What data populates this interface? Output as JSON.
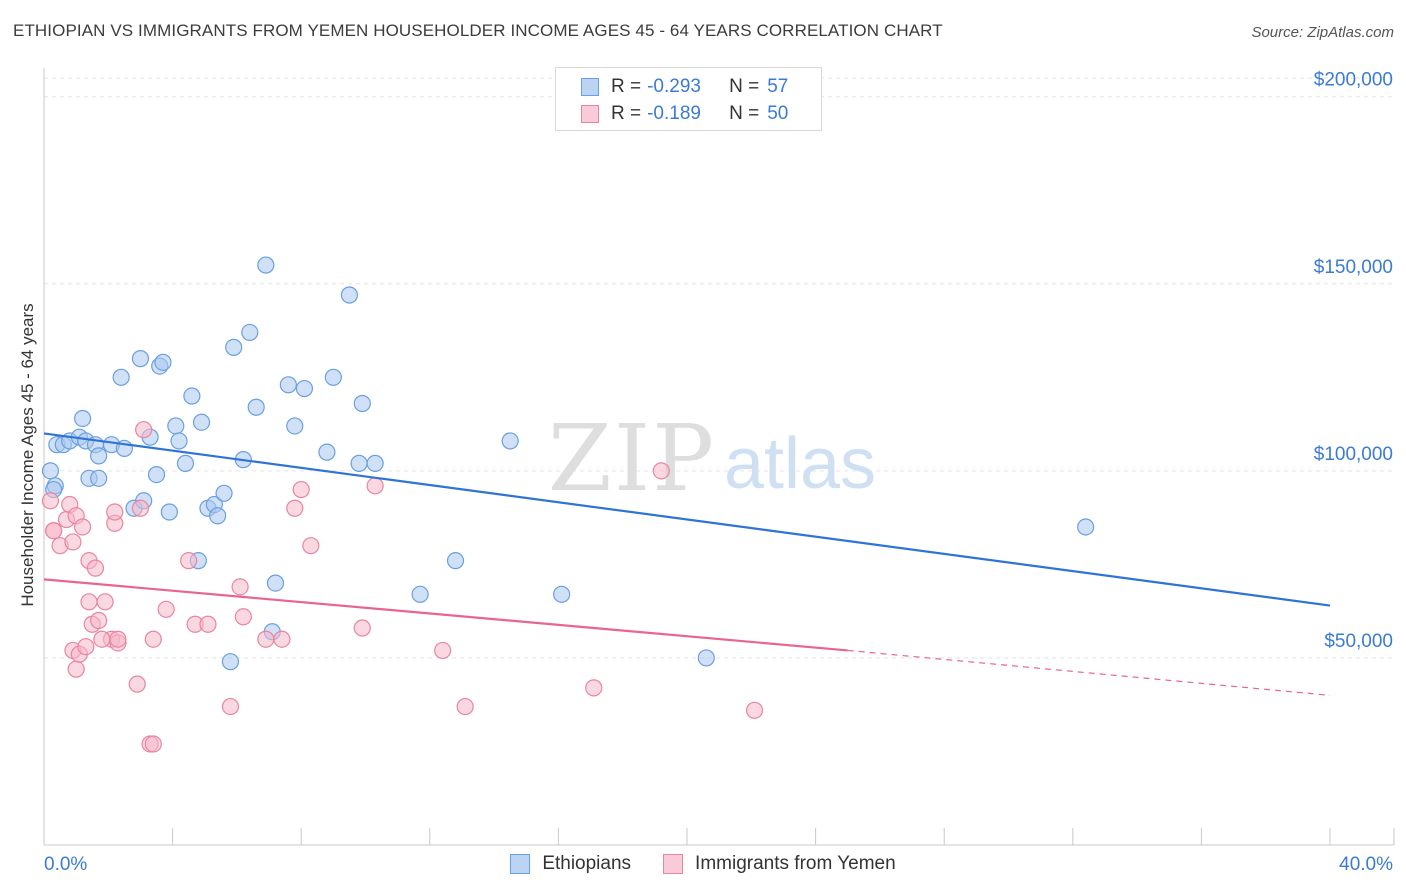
{
  "header": {
    "title": "ETHIOPIAN VS IMMIGRANTS FROM YEMEN HOUSEHOLDER INCOME AGES 45 - 64 YEARS CORRELATION CHART",
    "source": "Source: ZipAtlas.com"
  },
  "watermark": {
    "zip": "ZIP",
    "atlas": "atlas"
  },
  "legend": {
    "rows": [
      {
        "r_label": "R =",
        "r_value": "-0.293",
        "n_label": "N =",
        "n_value": "57"
      },
      {
        "r_label": "R =",
        "r_value": "-0.189",
        "n_label": "N =",
        "n_value": "50"
      }
    ]
  },
  "bottom_legend": {
    "series1": "Ethiopians",
    "series2": "Immigrants from Yemen"
  },
  "colors": {
    "blue_fill": "#a9c8f0",
    "blue_stroke": "#6a9fe0",
    "blue_line": "#2e74d6",
    "pink_fill": "#f6b8cb",
    "pink_stroke": "#e9859f",
    "pink_line": "#e8658f",
    "axis_text": "#3a7bd5",
    "grid": "#e3e3e3"
  },
  "chart_data": {
    "type": "scatter",
    "title": "ETHIOPIAN VS IMMIGRANTS FROM YEMEN HOUSEHOLDER INCOME AGES 45 - 64 YEARS CORRELATION CHART",
    "xlabel": "",
    "ylabel": "Householder Income Ages 45 - 64 years",
    "xlim": [
      0,
      40
    ],
    "ylim": [
      0,
      205000
    ],
    "x_tick_labels": [
      "0.0%",
      "40.0%"
    ],
    "y_tick_values": [
      50000,
      100000,
      150000,
      200000
    ],
    "y_tick_labels": [
      "$50,000",
      "$100,000",
      "$150,000",
      "$200,000"
    ],
    "grid": true,
    "series": [
      {
        "name": "Ethiopians",
        "color": "#a9c8f0",
        "trend": {
          "x": [
            0,
            40
          ],
          "y": [
            110000,
            64000
          ]
        },
        "points": [
          [
            0.2,
            100000
          ],
          [
            0.35,
            96000
          ],
          [
            0.4,
            107000
          ],
          [
            0.6,
            107000
          ],
          [
            0.8,
            108000
          ],
          [
            1.1,
            109000
          ],
          [
            1.3,
            108000
          ],
          [
            1.6,
            107000
          ],
          [
            1.4,
            98000
          ],
          [
            1.7,
            104000
          ],
          [
            2.1,
            107000
          ],
          [
            1.2,
            114000
          ],
          [
            2.5,
            106000
          ],
          [
            2.4,
            125000
          ],
          [
            3.0,
            130000
          ],
          [
            3.6,
            128000
          ],
          [
            3.7,
            129000
          ],
          [
            3.3,
            109000
          ],
          [
            3.5,
            99000
          ],
          [
            2.8,
            90000
          ],
          [
            3.1,
            92000
          ],
          [
            3.9,
            89000
          ],
          [
            4.1,
            112000
          ],
          [
            4.2,
            108000
          ],
          [
            4.4,
            102000
          ],
          [
            4.6,
            120000
          ],
          [
            4.9,
            113000
          ],
          [
            5.1,
            90000
          ],
          [
            5.3,
            91000
          ],
          [
            5.4,
            88000
          ],
          [
            5.6,
            94000
          ],
          [
            5.9,
            133000
          ],
          [
            6.2,
            103000
          ],
          [
            6.4,
            137000
          ],
          [
            6.6,
            117000
          ],
          [
            6.9,
            155000
          ],
          [
            7.2,
            70000
          ],
          [
            7.1,
            57000
          ],
          [
            7.6,
            123000
          ],
          [
            7.8,
            112000
          ],
          [
            8.1,
            122000
          ],
          [
            8.8,
            105000
          ],
          [
            9.0,
            125000
          ],
          [
            9.5,
            147000
          ],
          [
            9.9,
            118000
          ],
          [
            9.8,
            102000
          ],
          [
            10.3,
            102000
          ],
          [
            11.7,
            67000
          ],
          [
            12.8,
            76000
          ],
          [
            14.5,
            108000
          ],
          [
            16.1,
            67000
          ],
          [
            20.6,
            50000
          ],
          [
            32.4,
            85000
          ],
          [
            5.8,
            49000
          ],
          [
            4.8,
            76000
          ],
          [
            0.3,
            95000
          ],
          [
            1.7,
            98000
          ]
        ]
      },
      {
        "name": "Immigrants from Yemen",
        "color": "#f6b8cb",
        "trend": {
          "x": [
            0,
            25
          ],
          "y": [
            71000,
            52000
          ]
        },
        "trend_dashed": {
          "x": [
            25,
            40
          ],
          "y": [
            52000,
            40000
          ]
        },
        "points": [
          [
            0.2,
            92000
          ],
          [
            0.3,
            84000
          ],
          [
            0.5,
            80000
          ],
          [
            0.7,
            87000
          ],
          [
            0.9,
            81000
          ],
          [
            0.8,
            91000
          ],
          [
            1.0,
            88000
          ],
          [
            1.2,
            85000
          ],
          [
            0.9,
            52000
          ],
          [
            1.0,
            47000
          ],
          [
            1.1,
            51000
          ],
          [
            1.3,
            53000
          ],
          [
            1.4,
            65000
          ],
          [
            1.4,
            76000
          ],
          [
            1.6,
            74000
          ],
          [
            1.5,
            59000
          ],
          [
            1.7,
            60000
          ],
          [
            1.9,
            65000
          ],
          [
            2.1,
            55000
          ],
          [
            2.2,
            86000
          ],
          [
            2.3,
            54000
          ],
          [
            2.3,
            55000
          ],
          [
            2.9,
            43000
          ],
          [
            3.1,
            111000
          ],
          [
            3.0,
            90000
          ],
          [
            3.3,
            27000
          ],
          [
            3.4,
            27000
          ],
          [
            3.4,
            55000
          ],
          [
            3.8,
            63000
          ],
          [
            4.5,
            76000
          ],
          [
            4.7,
            59000
          ],
          [
            5.1,
            59000
          ],
          [
            5.8,
            37000
          ],
          [
            6.1,
            69000
          ],
          [
            6.2,
            61000
          ],
          [
            6.9,
            55000
          ],
          [
            7.4,
            55000
          ],
          [
            7.8,
            90000
          ],
          [
            8.0,
            95000
          ],
          [
            8.3,
            80000
          ],
          [
            9.9,
            58000
          ],
          [
            10.3,
            96000
          ],
          [
            12.4,
            52000
          ],
          [
            13.1,
            37000
          ],
          [
            17.1,
            42000
          ],
          [
            19.2,
            100000
          ],
          [
            22.1,
            36000
          ],
          [
            0.3,
            84000
          ],
          [
            2.2,
            89000
          ],
          [
            1.8,
            55000
          ]
        ]
      }
    ]
  }
}
